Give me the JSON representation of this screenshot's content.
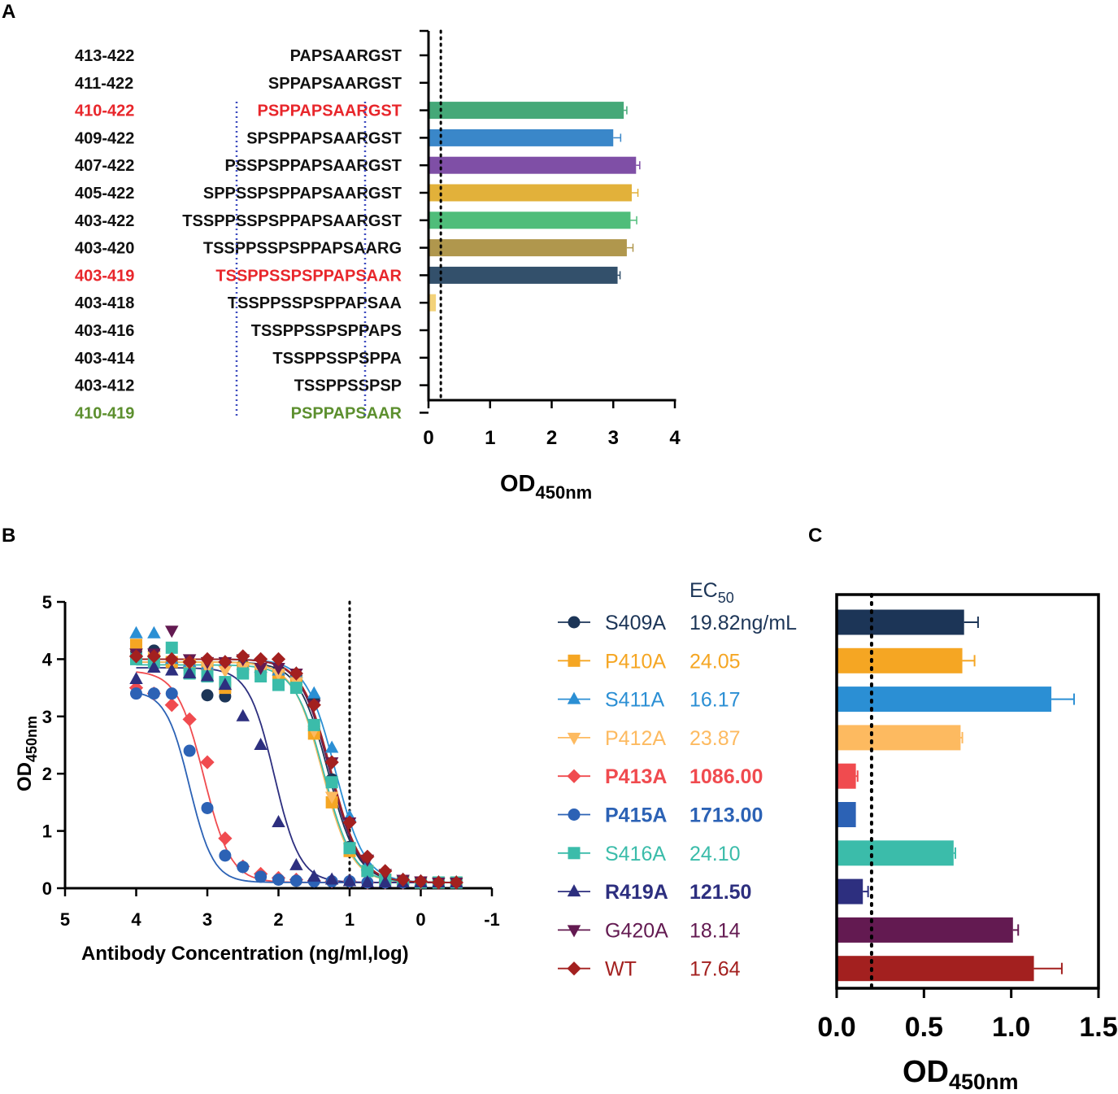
{
  "panels": {
    "a": "A",
    "b": "B",
    "c": "C"
  },
  "colors": {
    "axis": "#000000",
    "red": "#e8262b",
    "green_label": "#5c8f2e",
    "box": "#3d4bbf"
  },
  "chart_data": [
    {
      "id": "A",
      "type": "bar",
      "orientation": "horizontal",
      "xlabel_main": "OD",
      "xlabel_sub": "450nm",
      "xlim": [
        0,
        4
      ],
      "xticks": [
        "0",
        "1",
        "2",
        "3",
        "4"
      ],
      "threshold": 0.2,
      "rows": [
        {
          "range": "413-422",
          "seq": "PAPSAARGST",
          "value": 0.02,
          "err": 0.0,
          "color": "#45a878",
          "label_color": "#111111"
        },
        {
          "range": "411-422",
          "seq": "SPPAPSAARGST",
          "value": 0.02,
          "err": 0.0,
          "color": "#3a87c9",
          "label_color": "#111111"
        },
        {
          "range": "410-422",
          "seq": "PSPPAPSAARGST",
          "value": 3.17,
          "err": 0.05,
          "color": "#45a878",
          "label_color": "#e8262b"
        },
        {
          "range": "409-422",
          "seq": "SPSPPAPSAARGST",
          "value": 3.0,
          "err": 0.12,
          "color": "#3a87c9",
          "label_color": "#111111"
        },
        {
          "range": "407-422",
          "seq": "PSSPSPPAPSAARGST",
          "value": 3.37,
          "err": 0.06,
          "color": "#7f4fa6",
          "label_color": "#111111"
        },
        {
          "range": "405-422",
          "seq": "SPPSSPSPPAPSAARGST",
          "value": 3.3,
          "err": 0.1,
          "color": "#e2b13a",
          "label_color": "#111111"
        },
        {
          "range": "403-422",
          "seq": "TSSPPSSPSPPAPSAARGST",
          "value": 3.28,
          "err": 0.1,
          "color": "#4fbd7a",
          "label_color": "#111111"
        },
        {
          "range": "403-420",
          "seq": "TSSPPSSPSPPAPSAARG",
          "value": 3.22,
          "err": 0.1,
          "color": "#b0974d",
          "label_color": "#111111"
        },
        {
          "range": "403-419",
          "seq": "TSSPPSSPSPPAPSAAR",
          "value": 3.07,
          "err": 0.04,
          "color": "#33506b",
          "label_color": "#e8262b"
        },
        {
          "range": "403-418",
          "seq": "TSSPPSSPSPPAPSAA",
          "value": 0.12,
          "err": 0.0,
          "color": "#f3d27a",
          "label_color": "#111111"
        },
        {
          "range": "403-416",
          "seq": "TSSPPSSPSPPAPS",
          "value": 0.02,
          "err": 0.0,
          "color": "#e8842b",
          "label_color": "#111111"
        },
        {
          "range": "403-414",
          "seq": "TSSPPSSPSPPA",
          "value": 0.02,
          "err": 0.0,
          "color": "#45a878",
          "label_color": "#111111"
        },
        {
          "range": "403-412",
          "seq": "TSSPPSSPSP",
          "value": 0.02,
          "err": 0.0,
          "color": "#3a87c9",
          "label_color": "#111111"
        },
        {
          "range": "410-419",
          "seq": "PSPPAPSAAR",
          "value": 0.0,
          "err": 0.0,
          "color": "#5c8f2e",
          "label_color": "#5c8f2e"
        }
      ]
    },
    {
      "id": "B",
      "type": "scatter",
      "xlabel": "Antibody Concentration (ng/ml,log)",
      "ylabel_main": "OD",
      "ylabel_sub": "450nm",
      "xlim": [
        5,
        -1
      ],
      "ylim": [
        0,
        5
      ],
      "xticks": [
        "5",
        "4",
        "3",
        "2",
        "1",
        "0",
        "-1"
      ],
      "yticks": [
        "0",
        "1",
        "2",
        "3",
        "4",
        "5"
      ],
      "vline_x": 1.0,
      "x": [
        4.0,
        3.75,
        3.5,
        3.25,
        3.0,
        2.75,
        2.5,
        2.25,
        2.0,
        1.75,
        1.5,
        1.25,
        1.0,
        0.75,
        0.5,
        0.25,
        0.0,
        -0.25,
        -0.5
      ]
    }
  ],
  "series": [
    {
      "name": "S409A",
      "ec50": "19.82ng/mL",
      "color": "#1c3557",
      "marker": "circle",
      "bold": false,
      "top": 3.95,
      "bottom": 0.1,
      "mid": 1.3,
      "hill": 2.1,
      "points": [
        4.15,
        4.15,
        3.95,
        3.85,
        3.37,
        3.35,
        3.9,
        3.75,
        3.8,
        3.7,
        3.3,
        1.9,
        0.72,
        0.3,
        0.15,
        0.12,
        0.1,
        0.1,
        0.1
      ]
    },
    {
      "name": "P410A",
      "ec50": "24.05",
      "color": "#f5a623",
      "marker": "square",
      "bold": false,
      "top": 3.95,
      "bottom": 0.1,
      "mid": 1.38,
      "hill": 2.1,
      "points": [
        4.25,
        4.0,
        3.95,
        3.9,
        3.8,
        3.5,
        3.85,
        3.8,
        3.7,
        3.6,
        2.7,
        1.5,
        0.65,
        0.3,
        0.15,
        0.12,
        0.1,
        0.1,
        0.1
      ]
    },
    {
      "name": "S411A",
      "ec50": "16.17",
      "color": "#2b8fd4",
      "marker": "triangle",
      "bold": false,
      "top": 4.0,
      "bottom": 0.1,
      "mid": 1.2,
      "hill": 2.1,
      "points": [
        4.45,
        4.45,
        4.0,
        3.95,
        3.9,
        3.95,
        3.9,
        3.85,
        3.8,
        3.75,
        3.4,
        2.45,
        1.25,
        0.4,
        0.2,
        0.15,
        0.12,
        0.1,
        0.1
      ]
    },
    {
      "name": "P412A",
      "ec50": "23.87",
      "color": "#fdba60",
      "marker": "triangle-down",
      "bold": false,
      "top": 3.95,
      "bottom": 0.1,
      "mid": 1.38,
      "hill": 2.1,
      "points": [
        4.1,
        4.05,
        3.95,
        3.9,
        3.85,
        3.8,
        3.85,
        3.8,
        3.75,
        3.6,
        2.75,
        1.6,
        0.7,
        0.3,
        0.15,
        0.12,
        0.1,
        0.1,
        0.1
      ]
    },
    {
      "name": "P413A",
      "ec50": "1086.00",
      "color": "#f04b4f",
      "marker": "diamond",
      "bold": true,
      "top": 3.8,
      "bottom": 0.1,
      "mid": 3.05,
      "hill": 2.3,
      "points": [
        3.5,
        3.4,
        3.2,
        2.95,
        2.2,
        0.87,
        0.38,
        0.25,
        0.18,
        0.15,
        0.13,
        0.12,
        0.12,
        0.1,
        0.1,
        0.1,
        0.1,
        0.1,
        0.1
      ]
    },
    {
      "name": "P415A",
      "ec50": "1713.00",
      "color": "#2c62b5",
      "marker": "circle",
      "bold": true,
      "top": 3.45,
      "bottom": 0.1,
      "mid": 3.25,
      "hill": 2.6,
      "points": [
        3.4,
        3.4,
        3.4,
        2.4,
        1.4,
        0.57,
        0.37,
        0.2,
        0.15,
        0.13,
        0.12,
        0.12,
        0.12,
        0.1,
        0.1,
        0.1,
        0.1,
        0.1,
        0.1
      ]
    },
    {
      "name": "S416A",
      "ec50": "24.10",
      "color": "#3bbcaa",
      "marker": "square",
      "bold": false,
      "top": 3.9,
      "bottom": 0.1,
      "mid": 1.36,
      "hill": 2.1,
      "points": [
        4.0,
        3.95,
        4.2,
        3.75,
        3.7,
        3.6,
        3.75,
        3.7,
        3.55,
        3.5,
        2.85,
        1.85,
        0.7,
        0.3,
        0.15,
        0.12,
        0.1,
        0.1,
        0.1
      ]
    },
    {
      "name": "R419A",
      "ec50": "121.50",
      "color": "#2d2f7f",
      "marker": "triangle",
      "bold": true,
      "top": 3.85,
      "bottom": 0.1,
      "mid": 2.06,
      "hill": 2.4,
      "points": [
        3.65,
        3.85,
        3.8,
        3.75,
        3.7,
        3.55,
        3.0,
        2.5,
        1.15,
        0.4,
        0.2,
        0.15,
        0.12,
        0.1,
        0.1,
        0.1,
        0.1,
        0.1,
        0.1
      ]
    },
    {
      "name": "G420A",
      "ec50": "18.14",
      "color": "#631a51",
      "marker": "triangle-down",
      "bold": false,
      "top": 4.0,
      "bottom": 0.1,
      "mid": 1.28,
      "hill": 2.1,
      "points": [
        4.1,
        4.1,
        4.5,
        4.0,
        3.95,
        3.95,
        4.0,
        3.85,
        3.85,
        3.75,
        3.2,
        2.2,
        1.15,
        0.5,
        0.25,
        0.15,
        0.12,
        0.1,
        0.1
      ]
    },
    {
      "name": "WT",
      "ec50": "17.64",
      "color": "#a3201f",
      "marker": "diamond",
      "bold": false,
      "top": 4.0,
      "bottom": 0.1,
      "mid": 1.26,
      "hill": 2.1,
      "points": [
        4.05,
        4.05,
        4.0,
        3.95,
        4.0,
        3.95,
        4.05,
        4.0,
        4.0,
        3.75,
        3.2,
        2.2,
        1.15,
        0.55,
        0.3,
        0.15,
        0.12,
        0.1,
        0.1
      ]
    }
  ],
  "legend_header": {
    "main": "EC",
    "sub": "50"
  },
  "chart_c": {
    "type": "bar",
    "orientation": "horizontal",
    "xlabel_main": "OD",
    "xlabel_sub": "450nm",
    "xlim": [
      0,
      1.5
    ],
    "xticks": [
      "0.0",
      "0.5",
      "1.0",
      "1.5"
    ],
    "threshold": 0.2,
    "values": [
      0.73,
      0.72,
      1.23,
      0.71,
      0.11,
      0.11,
      0.67,
      0.15,
      1.01,
      1.13
    ],
    "errors": [
      0.08,
      0.07,
      0.13,
      0.01,
      0.01,
      0.0,
      0.01,
      0.03,
      0.03,
      0.16
    ]
  }
}
